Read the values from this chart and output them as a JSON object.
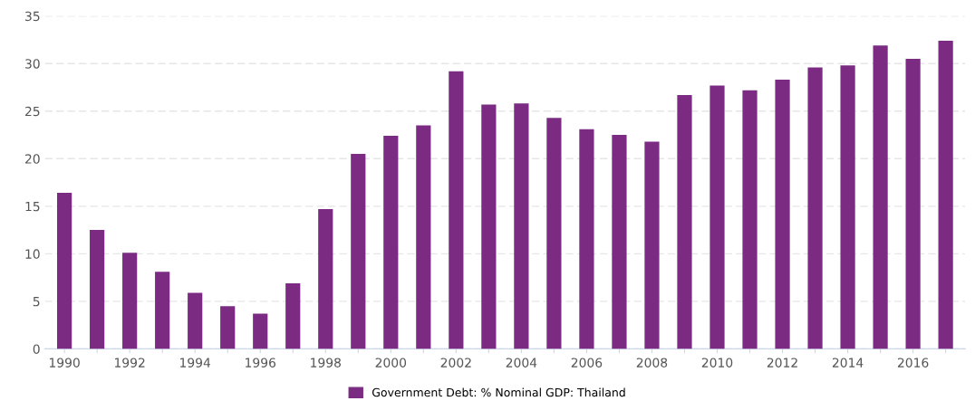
{
  "chart_data": {
    "type": "bar",
    "categories": [
      "1990",
      null,
      "1992",
      null,
      "1994",
      null,
      "1996",
      null,
      "1998",
      null,
      "2000",
      null,
      "2002",
      null,
      "2004",
      null,
      "2006",
      null,
      "2008",
      null,
      "2010",
      null,
      "2012",
      null,
      "2014",
      null,
      "2016",
      null
    ],
    "series": [
      {
        "name": "Government Debt: % Nominal GDP: Thailand",
        "color": "#7b2c82",
        "values": [
          16.4,
          12.5,
          10.1,
          8.1,
          5.9,
          4.5,
          3.7,
          6.9,
          14.7,
          20.5,
          22.4,
          23.5,
          29.2,
          25.7,
          25.8,
          24.3,
          23.1,
          22.5,
          21.8,
          26.7,
          27.7,
          27.2,
          28.3,
          29.6,
          29.8,
          31.9,
          30.5,
          32.4
        ]
      }
    ],
    "ylim": [
      0,
      35
    ],
    "yticks": [
      0,
      5,
      10,
      15,
      20,
      25,
      30,
      35
    ],
    "grid": "y",
    "legend": "bottom"
  }
}
